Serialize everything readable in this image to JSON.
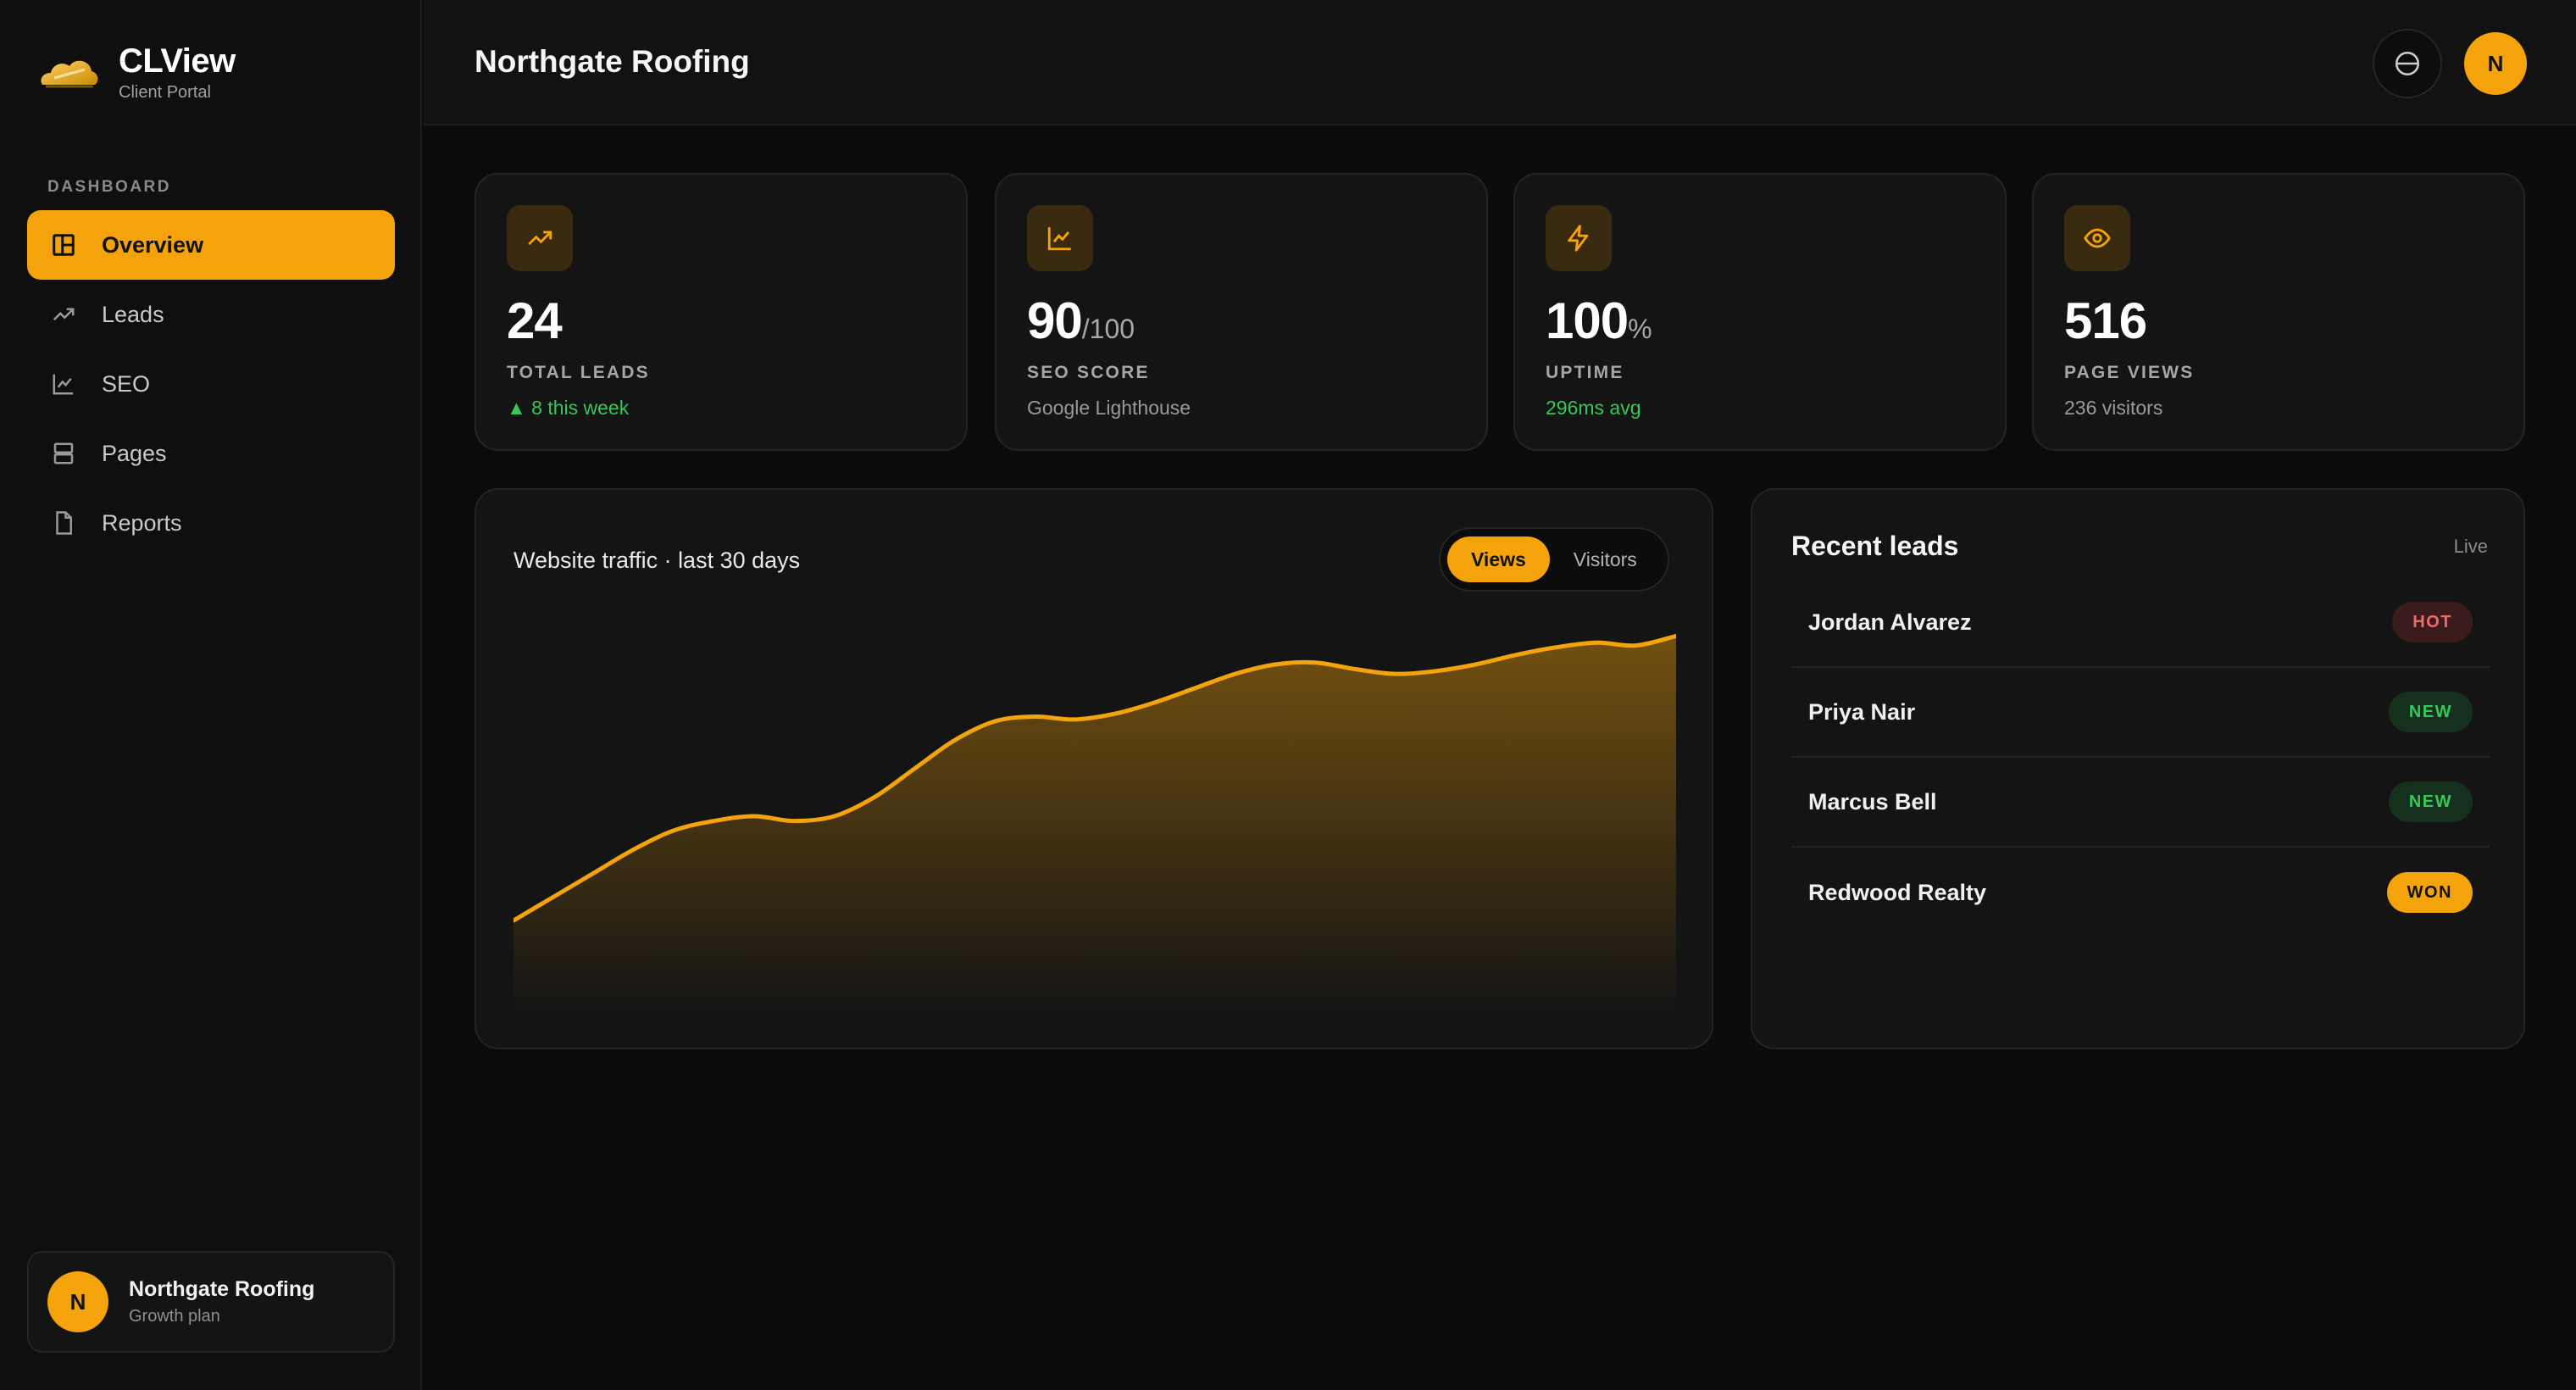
{
  "brand": {
    "name": "CLView",
    "subtitle": "Client Portal"
  },
  "sidebar": {
    "section_label": "DASHBOARD",
    "items": [
      {
        "label": "Overview",
        "icon": "dashboard-icon",
        "active": true
      },
      {
        "label": "Leads",
        "icon": "trending-icon",
        "active": false
      },
      {
        "label": "SEO",
        "icon": "line-chart-icon",
        "active": false
      },
      {
        "label": "Pages",
        "icon": "pages-icon",
        "active": false
      },
      {
        "label": "Reports",
        "icon": "document-icon",
        "active": false
      }
    ],
    "account": {
      "initial": "N",
      "name": "Northgate Roofing",
      "plan": "Growth plan"
    }
  },
  "header": {
    "title": "Northgate Roofing",
    "avatar_initial": "N"
  },
  "stats": [
    {
      "icon": "trending-icon",
      "value": "24",
      "suffix": "",
      "label": "TOTAL LEADS",
      "sub": "▲ 8 this week",
      "sub_color": "green"
    },
    {
      "icon": "line-chart-icon",
      "value": "90",
      "suffix": "/100",
      "label": "SEO SCORE",
      "sub": "Google Lighthouse",
      "sub_color": "gray"
    },
    {
      "icon": "bolt-icon",
      "value": "100",
      "suffix": "%",
      "label": "UPTIME",
      "sub": "296ms avg",
      "sub_color": "green"
    },
    {
      "icon": "eye-icon",
      "value": "516",
      "suffix": "",
      "label": "PAGE VIEWS",
      "sub": "236 visitors",
      "sub_color": "gray"
    }
  ],
  "traffic": {
    "title": "Website traffic · last 30 days",
    "toggle": {
      "views_label": "Views",
      "visitors_label": "Visitors",
      "selected": "Views"
    }
  },
  "chart_data": {
    "type": "area",
    "title": "Website traffic · last 30 days",
    "x": [
      1,
      2,
      3,
      4,
      5,
      6,
      7,
      8,
      9,
      10,
      11,
      12,
      13,
      14,
      15,
      16,
      17,
      18,
      19,
      20,
      21,
      22,
      23,
      24,
      25,
      26,
      27,
      28,
      29,
      30
    ],
    "series": [
      {
        "name": "Views",
        "values": [
          10,
          12.5,
          15,
          17.5,
          19.5,
          20.5,
          21,
          20.5,
          21,
          23,
          26,
          29,
          31,
          31.5,
          31.2,
          31.8,
          33,
          34.5,
          36,
          37,
          37.2,
          36.5,
          36,
          36.3,
          37,
          38,
          38.8,
          39.3,
          39,
          40
        ]
      }
    ],
    "ylim": [
      0,
      42
    ],
    "grid": false,
    "colors": {
      "line": "#f5a30a",
      "fill": "#f5a30a"
    }
  },
  "leads": {
    "title": "Recent leads",
    "status": "Live",
    "rows": [
      {
        "name": "Jordan Alvarez",
        "badge": "HOT",
        "kind": "hot"
      },
      {
        "name": "Priya Nair",
        "badge": "NEW",
        "kind": "new"
      },
      {
        "name": "Marcus Bell",
        "badge": "NEW",
        "kind": "new"
      },
      {
        "name": "Redwood Realty",
        "badge": "WON",
        "kind": "won"
      }
    ]
  },
  "colors": {
    "accent": "#f5a30a",
    "success": "#35c759",
    "danger": "#f06a6a",
    "background": "#0b0b0b",
    "card": "#141414"
  }
}
